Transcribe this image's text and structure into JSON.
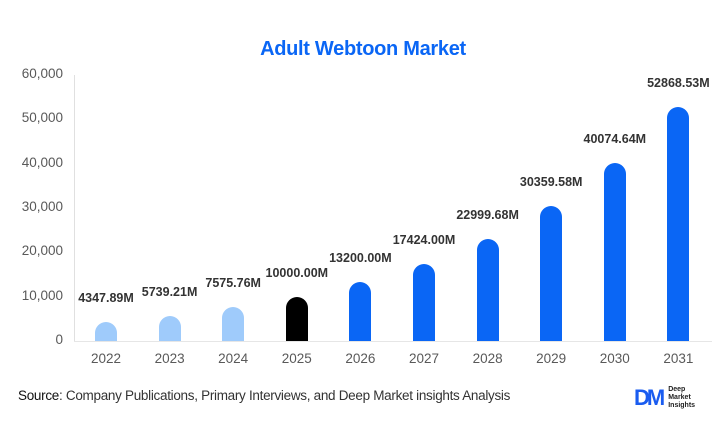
{
  "chart_data": {
    "type": "bar",
    "title": "Adult Webtoon Market",
    "xlabel": "",
    "ylabel": "",
    "ylim": [
      0,
      60000
    ],
    "yticks": [
      "0",
      "10,000",
      "20,000",
      "30,000",
      "40,000",
      "50,000",
      "60,000"
    ],
    "grid": false,
    "legend": null,
    "categories": [
      "2022",
      "2023",
      "2024",
      "2025",
      "2026",
      "2027",
      "2028",
      "2029",
      "2030",
      "2031"
    ],
    "values": [
      4347.89,
      5739.21,
      7575.76,
      10000.0,
      13200.0,
      17424.0,
      22999.68,
      30359.58,
      40074.64,
      52868.53
    ],
    "value_labels": [
      "4347.89M",
      "5739.21M",
      "7575.76M",
      "10000.00M",
      "13200.00M",
      "17424.00M",
      "22999.68M",
      "30359.58M",
      "40074.64M",
      "52868.53M"
    ],
    "bar_colors": [
      "#9fcbfb",
      "#9fcbfb",
      "#9fcbfb",
      "#000000",
      "#0a66f5",
      "#0a66f5",
      "#0a66f5",
      "#0a66f5",
      "#0a66f5",
      "#0a66f5"
    ],
    "color_legend_semantics": {
      "historical": "#9fcbfb",
      "base_year": "#000000",
      "forecast": "#0a66f5"
    }
  },
  "footer": {
    "source_label": "Source",
    "source_text": ": Company Publications, Primary Interviews, and Deep Market insights Analysis",
    "logo_mark": "DM",
    "logo_line1": "Deep",
    "logo_line2": "Market",
    "logo_line3": "Insights"
  }
}
